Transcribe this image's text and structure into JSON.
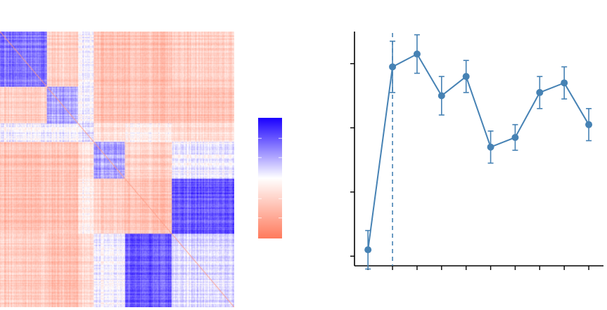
{
  "figure": {
    "colors": {
      "positive": "#1a00ff",
      "neutral": "#ffffff",
      "negative": "#ff7a5c",
      "line": "#4682b4",
      "axis": "#000000"
    }
  },
  "chart_data": [
    {
      "type": "heatmap",
      "title": "",
      "xlabel": "",
      "ylabel": "",
      "block_sizes": [
        60,
        40,
        20,
        40,
        60,
        80
      ],
      "block_correlation_matrix": [
        [
          0.55,
          -0.35,
          0.05,
          -0.45,
          -0.45,
          -0.35
        ],
        [
          -0.35,
          0.35,
          0.05,
          -0.45,
          -0.45,
          -0.45
        ],
        [
          0.05,
          0.05,
          0.15,
          -0.2,
          -0.1,
          -0.25
        ],
        [
          -0.45,
          -0.45,
          -0.2,
          0.35,
          -0.35,
          0.05
        ],
        [
          -0.45,
          -0.45,
          -0.1,
          -0.35,
          -0.45,
          0.65
        ],
        [
          -0.35,
          -0.45,
          -0.25,
          0.05,
          0.65,
          0.15
        ]
      ],
      "diagonal": "negative",
      "colorbar": {
        "range": [
          -1,
          1
        ],
        "ticks_shown": false,
        "low_color": "#ff7a5c",
        "mid_color": "#ffffff",
        "high_color": "#1a00ff"
      }
    },
    {
      "type": "line",
      "title": "",
      "xlabel": "",
      "ylabel": "",
      "x": [
        1,
        2,
        3,
        4,
        5,
        6,
        7,
        8,
        9,
        10
      ],
      "y": [
        0.32,
        0.89,
        0.93,
        0.8,
        0.86,
        0.64,
        0.67,
        0.81,
        0.84,
        0.71
      ],
      "error": [
        0.06,
        0.08,
        0.06,
        0.06,
        0.05,
        0.05,
        0.04,
        0.05,
        0.05,
        0.05
      ],
      "xlim": [
        0.45,
        10.6
      ],
      "ylim": [
        0.27,
        1.0
      ],
      "yticks": [
        0.3,
        0.5,
        0.7,
        0.9
      ],
      "vline_x": 2,
      "grid": false,
      "legend": "none"
    }
  ]
}
